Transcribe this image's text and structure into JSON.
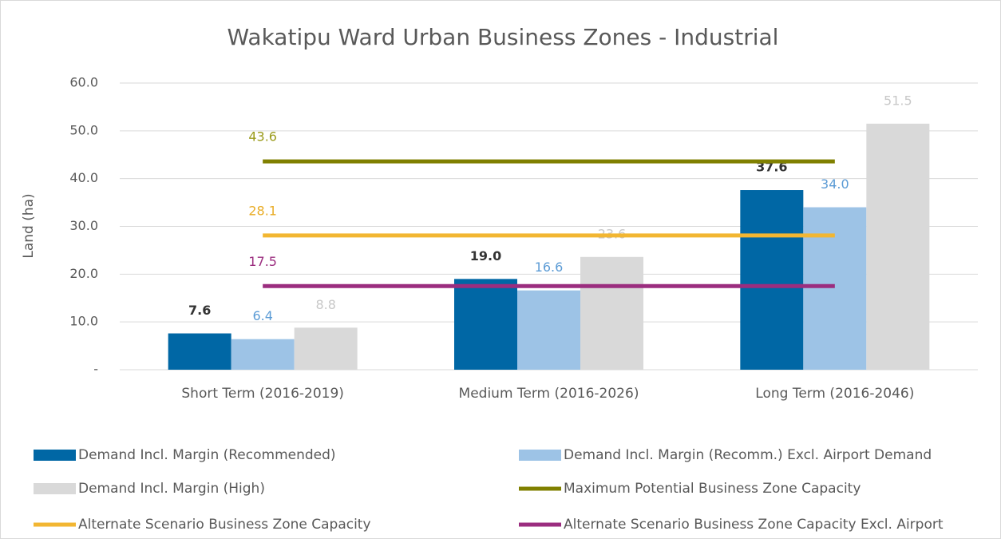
{
  "chart_data": {
    "type": "bar",
    "title": "Wakatipu Ward Urban Business Zones - Industrial",
    "y_label": "Land (ha)",
    "categories": [
      "Short Term (2016-2019)",
      "Medium Term (2016-2026)",
      "Long Term (2016-2046)"
    ],
    "ylim": [
      0,
      60
    ],
    "yticks": [
      {
        "value": 0,
        "label": "-"
      },
      {
        "value": 10,
        "label": "10.0"
      },
      {
        "value": 20,
        "label": "20.0"
      },
      {
        "value": 30,
        "label": "30.0"
      },
      {
        "value": 40,
        "label": "40.0"
      },
      {
        "value": 50,
        "label": "50.0"
      },
      {
        "value": 60,
        "label": "60.0"
      }
    ],
    "grid": true,
    "legend": "bottom",
    "series": [
      {
        "name": "Demand Incl. Margin (Recommended)",
        "type": "bar",
        "color": "#0067a5",
        "label_color": "#333333",
        "values": [
          7.6,
          19.0,
          37.6
        ],
        "value_labels": [
          "7.6",
          "19.0",
          "37.6"
        ]
      },
      {
        "name": "Demand Incl. Margin (Recomm.) Excl. Airport Demand",
        "type": "bar",
        "color": "#9dc3e6",
        "label_color": "#5b9bd5",
        "values": [
          6.4,
          16.6,
          34.0
        ],
        "value_labels": [
          "6.4",
          "16.6",
          "34.0"
        ]
      },
      {
        "name": "Demand Incl. Margin (High)",
        "type": "bar",
        "color": "#d9d9d9",
        "label_color": "#c8c8c8",
        "values": [
          8.8,
          23.6,
          51.5
        ],
        "value_labels": [
          "8.8",
          "23.6",
          "51.5"
        ]
      },
      {
        "name": "Maximum Potential Business Zone Capacity",
        "type": "line",
        "color": "#808000",
        "label_color": "#9a9a1a",
        "values": [
          43.6,
          43.6,
          43.6
        ],
        "value_labels": [
          "43.6",
          null,
          null
        ]
      },
      {
        "name": "Alternate Scenario Business Zone Capacity",
        "type": "line",
        "color": "#f2b632",
        "label_color": "#e9ad28",
        "values": [
          28.1,
          28.1,
          28.1
        ],
        "value_labels": [
          "28.1",
          null,
          null
        ]
      },
      {
        "name": "Alternate Scenario Business Zone Capacity Excl. Airport",
        "type": "line",
        "color": "#9b2d7f",
        "label_color": "#9b2d7f",
        "values": [
          17.5,
          17.5,
          17.5
        ],
        "value_labels": [
          "17.5",
          null,
          null
        ]
      }
    ]
  }
}
